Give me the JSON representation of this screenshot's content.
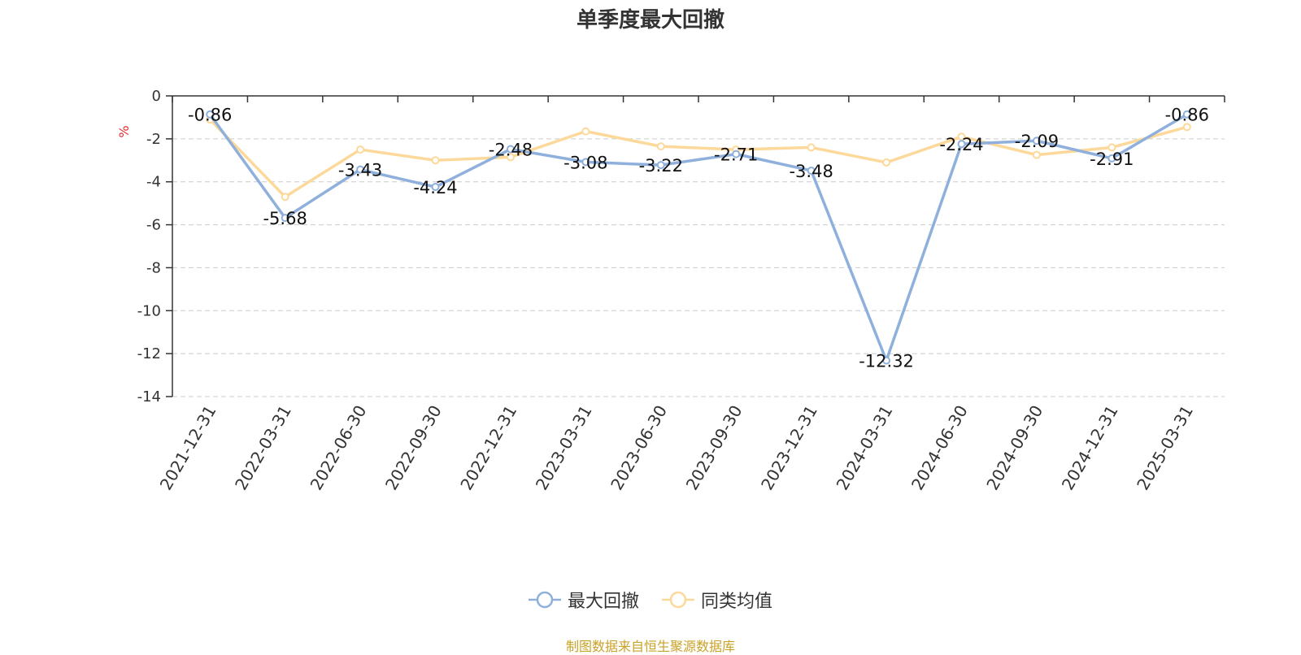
{
  "chart_data": {
    "type": "line",
    "title": "单季度最大回撤",
    "ylabel": "%",
    "ylim": [
      -14,
      0
    ],
    "yticks": [
      0,
      -2,
      -4,
      -6,
      -8,
      -10,
      -12,
      -14
    ],
    "grid": true,
    "legend_position": "bottom-center",
    "categories": [
      "2021-12-31",
      "2022-03-31",
      "2022-06-30",
      "2022-09-30",
      "2022-12-31",
      "2023-03-31",
      "2023-06-30",
      "2023-09-30",
      "2023-12-31",
      "2024-03-31",
      "2024-06-30",
      "2024-09-30",
      "2024-12-31",
      "2025-03-31"
    ],
    "series": [
      {
        "name": "最大回撤",
        "color": "#8fb0dc",
        "values": [
          -0.86,
          -5.68,
          -3.43,
          -4.24,
          -2.48,
          -3.08,
          -3.22,
          -2.71,
          -3.48,
          -12.32,
          -2.24,
          -2.09,
          -2.91,
          -0.86
        ],
        "labels": [
          "-0.86",
          "-5.68",
          "-3.43",
          "-4.24",
          "-2.48",
          "-3.08",
          "-3.22",
          "-2.71",
          "-3.48",
          "-12.32",
          "-2.24",
          "-2.09",
          "-2.91",
          "-0.86"
        ]
      },
      {
        "name": "同类均值",
        "color": "#fcd99a",
        "values": [
          -1.1,
          -4.7,
          -2.5,
          -3.0,
          -2.85,
          -1.65,
          -2.35,
          -2.5,
          -2.4,
          -3.1,
          -1.9,
          -2.75,
          -2.4,
          -1.45
        ]
      }
    ]
  },
  "source_note": "制图数据来自恒生聚源数据库"
}
